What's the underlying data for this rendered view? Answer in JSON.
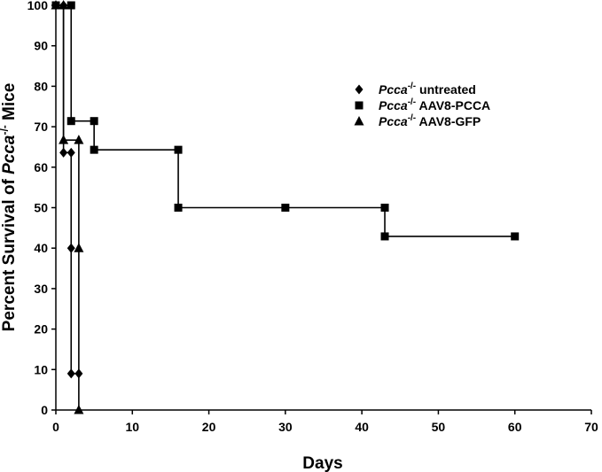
{
  "chart_data": {
    "type": "line",
    "step": true,
    "title": "",
    "xlabel": "Days",
    "ylabel": {
      "prefix": "Percent Survival of ",
      "italic": "Pcca",
      "sup": "-/-",
      "suffix": " Mice"
    },
    "xlim": [
      0,
      70
    ],
    "ylim": [
      0,
      100
    ],
    "xticks": [
      0,
      10,
      20,
      30,
      40,
      50,
      60,
      70
    ],
    "yticks": [
      0,
      10,
      20,
      30,
      40,
      50,
      60,
      70,
      80,
      90,
      100
    ],
    "grid": false,
    "legend_position": "top-right",
    "series": [
      {
        "id": "untreated",
        "legend": {
          "italic": "Pcca",
          "sup": "-/-",
          "rest": " untreated"
        },
        "marker": "diamond",
        "points": [
          [
            0,
            100
          ],
          [
            1,
            100
          ],
          [
            1,
            63.6
          ],
          [
            2,
            63.6
          ],
          [
            2,
            40
          ],
          [
            2,
            9
          ],
          [
            3,
            9
          ]
        ]
      },
      {
        "id": "pcca",
        "legend": {
          "italic": "Pcca",
          "sup": "-/-",
          "rest": " AAV8-PCCA"
        },
        "marker": "square",
        "points": [
          [
            0,
            100
          ],
          [
            2,
            100
          ],
          [
            2,
            71.4
          ],
          [
            5,
            71.4
          ],
          [
            5,
            64.3
          ],
          [
            16,
            64.3
          ],
          [
            16,
            50
          ],
          [
            30,
            50
          ],
          [
            43,
            50
          ],
          [
            43,
            42.9
          ],
          [
            60,
            42.9
          ]
        ]
      },
      {
        "id": "gfp",
        "legend": {
          "italic": "Pcca",
          "sup": "-/-",
          "rest": " AAV8-GFP"
        },
        "marker": "triangle",
        "points": [
          [
            0,
            100
          ],
          [
            1,
            100
          ],
          [
            1,
            66.7
          ],
          [
            3,
            66.7
          ],
          [
            3,
            40
          ],
          [
            3,
            0
          ]
        ]
      }
    ]
  }
}
